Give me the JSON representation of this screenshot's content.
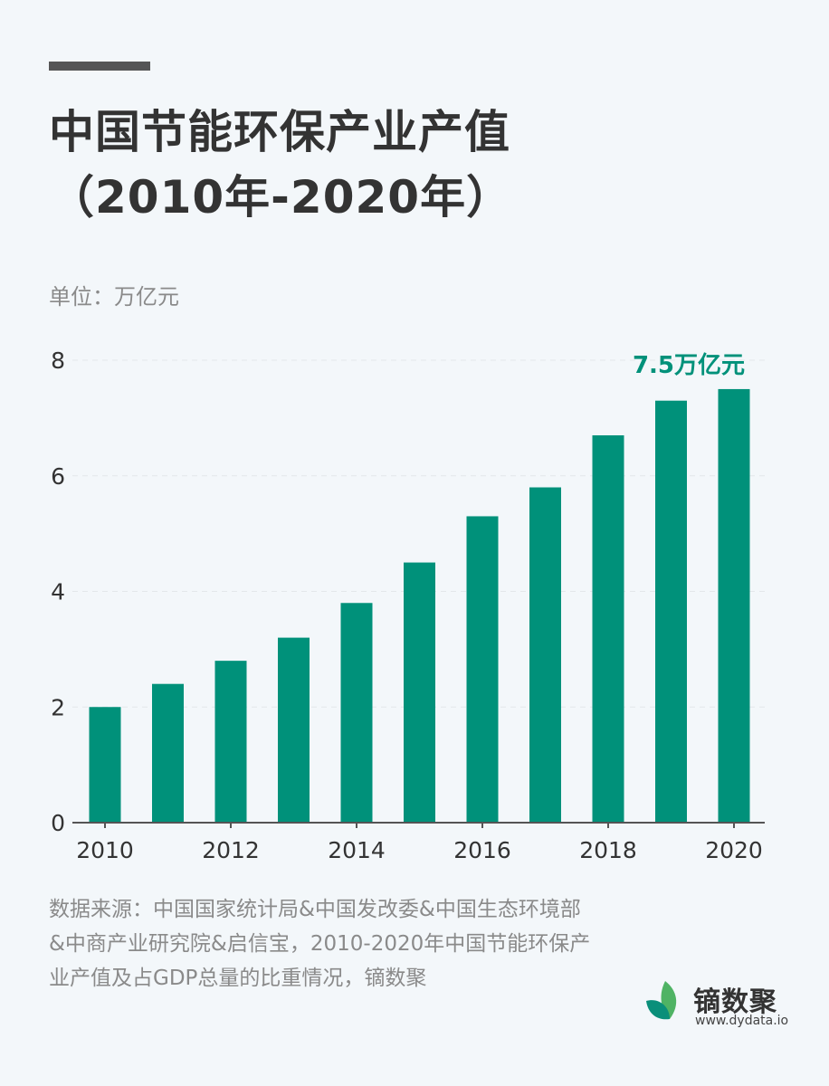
{
  "header": {
    "title_line1": "中国节能环保产业产值",
    "title_line2": "（2010年-2020年）"
  },
  "unit_label": "单位：万亿元",
  "chart_data": {
    "type": "bar",
    "x": [
      2010,
      2011,
      2012,
      2013,
      2014,
      2015,
      2016,
      2017,
      2018,
      2019,
      2020
    ],
    "values": [
      2.0,
      2.4,
      2.8,
      3.2,
      3.8,
      4.5,
      5.3,
      5.8,
      6.7,
      7.3,
      7.5
    ],
    "x_tick_labels": [
      "2010",
      "2012",
      "2014",
      "2016",
      "2018",
      "2020"
    ],
    "y_ticks": [
      0,
      2,
      4,
      6,
      8
    ],
    "ylim": [
      0,
      8
    ],
    "grid": true,
    "bar_color": "#00917a",
    "annotation": {
      "x": 2020,
      "text": "7.5万亿元"
    }
  },
  "footer": {
    "source": "数据来源：中国国家统计局&中国发改委&中国生态环境部&中商产业研究院&启信宝，2010-2020年中国节能环保产业产值及占GDP总量的比重情况，镝数聚"
  },
  "brand": {
    "name": "镝数聚",
    "url": "www.dydata.io",
    "logo_icon": "leaf-logo-icon"
  }
}
